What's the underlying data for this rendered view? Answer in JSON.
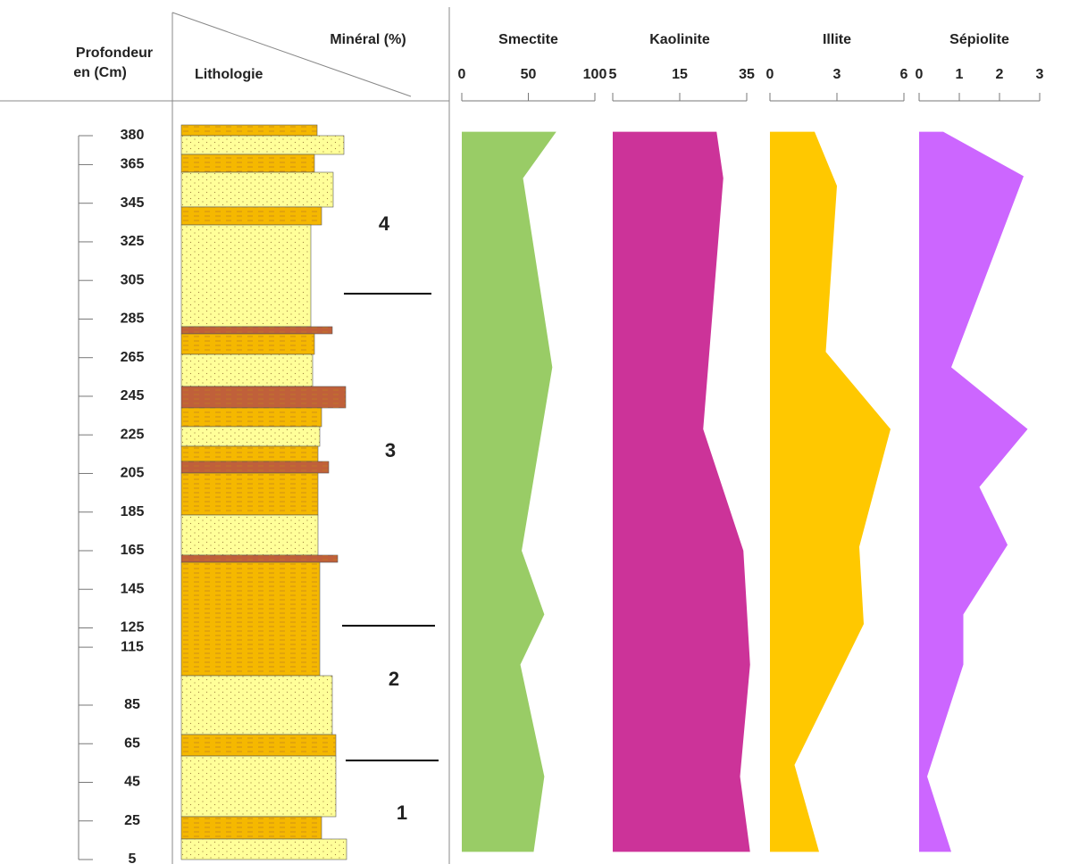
{
  "header": {
    "depth_title": [
      "Profondeur",
      "en (Cm)"
    ],
    "mineral_title": "Minéral (%)",
    "lithology_title": "Lithologie"
  },
  "depth_axis": {
    "ylim": [
      380,
      5
    ],
    "yticks": [
      380,
      365,
      345,
      325,
      305,
      285,
      265,
      245,
      225,
      205,
      185,
      165,
      145,
      125,
      115,
      85,
      65,
      45,
      25,
      5
    ]
  },
  "zones": [
    "4",
    "3",
    "2",
    "1"
  ],
  "chart_data": [
    {
      "type": "area",
      "title": "Smectite",
      "color": "#99cc66",
      "xlim": [
        0,
        100
      ],
      "xticks": [
        0,
        50,
        100
      ],
      "depths": [
        382,
        358,
        260,
        165,
        132,
        106,
        48,
        9
      ],
      "values": [
        71,
        46,
        68,
        45,
        62,
        44,
        62,
        54
      ]
    },
    {
      "type": "area",
      "title": "Kaolinite",
      "color": "#cc3399",
      "xlim": [
        5,
        35
      ],
      "xticks": [
        5,
        15,
        35
      ],
      "depths": [
        382,
        358,
        228,
        165,
        106,
        48,
        9
      ],
      "values": [
        26,
        28,
        22,
        34,
        36,
        33,
        36
      ]
    },
    {
      "type": "area",
      "title": "Illite",
      "color": "#ffc800",
      "xlim": [
        0,
        6
      ],
      "xticks": [
        0,
        3,
        6
      ],
      "depths": [
        382,
        354,
        268,
        228,
        167,
        127,
        54,
        9
      ],
      "values": [
        2.0,
        3.0,
        2.5,
        5.4,
        4.0,
        4.2,
        1.1,
        2.2
      ]
    },
    {
      "type": "area",
      "title": "Sépiolite",
      "color": "#cc66ff",
      "xlim": [
        0,
        3
      ],
      "xticks": [
        0,
        1,
        2,
        3
      ],
      "depths": [
        382,
        359,
        260,
        228,
        198,
        168,
        132,
        106,
        48,
        9
      ],
      "values": [
        0.6,
        2.6,
        0.8,
        2.7,
        1.5,
        2.2,
        1.1,
        1.1,
        0.2,
        0.8
      ]
    }
  ]
}
